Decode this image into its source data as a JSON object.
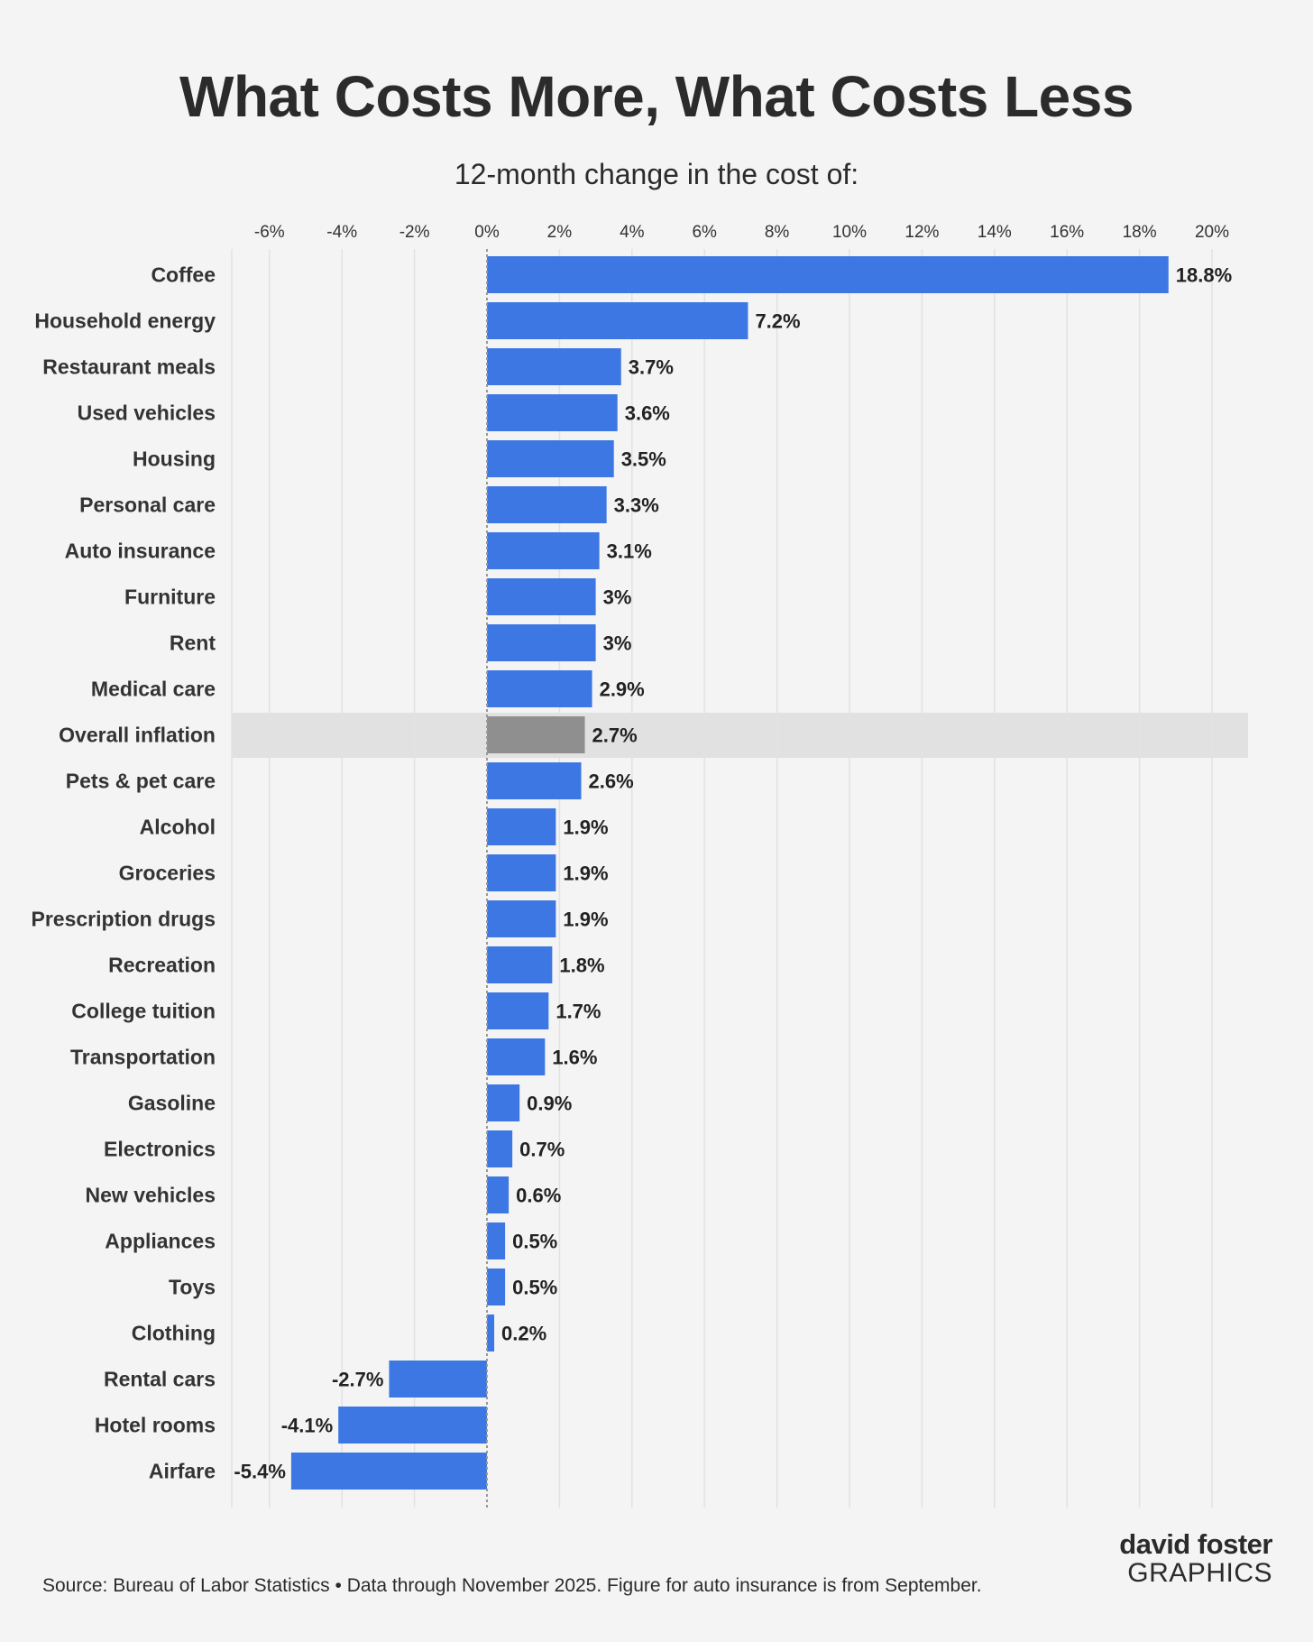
{
  "title": "What Costs More, What Costs Less",
  "subtitle": "12-month change in the cost of:",
  "footer": "Source: Bureau of Labor Statistics • Data through November 2025. Figure for auto insurance is from September.",
  "logo": {
    "line1": "david foster",
    "line2": "GRAPHICS"
  },
  "colors": {
    "bar": "#3d77e3",
    "highlight_bar": "#8f8f8f",
    "highlight_band": "#e1e1e1",
    "background": "#f4f4f4"
  },
  "chart_data": {
    "type": "bar",
    "orientation": "horizontal",
    "title": "What Costs More, What Costs Less",
    "subtitle": "12-month change in the cost of:",
    "xlabel": "",
    "ylabel": "",
    "xlim": [
      -7,
      21
    ],
    "x_ticks": [
      -6,
      -4,
      -2,
      0,
      2,
      4,
      6,
      8,
      10,
      12,
      14,
      16,
      18,
      20
    ],
    "x_tick_labels": [
      "-6%",
      "-4%",
      "-2%",
      "0%",
      "2%",
      "4%",
      "6%",
      "8%",
      "10%",
      "12%",
      "14%",
      "16%",
      "18%",
      "20%"
    ],
    "highlight": "Overall inflation",
    "categories": [
      "Coffee",
      "Household energy",
      "Restaurant meals",
      "Used vehicles",
      "Housing",
      "Personal care",
      "Auto insurance",
      "Furniture",
      "Rent",
      "Medical care",
      "Overall inflation",
      "Pets & pet care",
      "Alcohol",
      "Groceries",
      "Prescription drugs",
      "Recreation",
      "College tuition",
      "Transportation",
      "Gasoline",
      "Electronics",
      "New vehicles",
      "Appliances",
      "Toys",
      "Clothing",
      "Rental cars",
      "Hotel rooms",
      "Airfare"
    ],
    "values": [
      18.8,
      7.2,
      3.7,
      3.6,
      3.5,
      3.3,
      3.1,
      3,
      3,
      2.9,
      2.7,
      2.6,
      1.9,
      1.9,
      1.9,
      1.8,
      1.7,
      1.6,
      0.9,
      0.7,
      0.6,
      0.5,
      0.5,
      0.2,
      -2.7,
      -4.1,
      -5.4
    ],
    "value_labels": [
      "18.8%",
      "7.2%",
      "3.7%",
      "3.6%",
      "3.5%",
      "3.3%",
      "3.1%",
      "3%",
      "3%",
      "2.9%",
      "2.7%",
      "2.6%",
      "1.9%",
      "1.9%",
      "1.9%",
      "1.8%",
      "1.7%",
      "1.6%",
      "0.9%",
      "0.7%",
      "0.6%",
      "0.5%",
      "0.5%",
      "0.2%",
      "-2.7%",
      "-4.1%",
      "-5.4%"
    ]
  }
}
